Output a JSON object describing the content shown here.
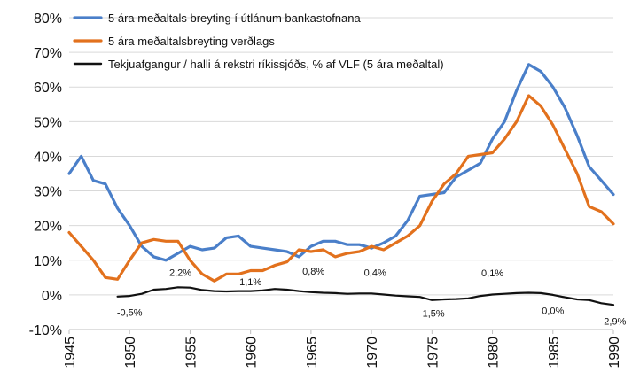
{
  "chart_data": {
    "type": "line",
    "xlim": [
      1945,
      1990
    ],
    "ylim": [
      -10,
      80
    ],
    "y_ticks": [
      "80%",
      "70%",
      "60%",
      "50%",
      "40%",
      "30%",
      "20%",
      "10%",
      "0%",
      "-10%"
    ],
    "y_tick_values": [
      80,
      70,
      60,
      50,
      40,
      30,
      20,
      10,
      0,
      -10
    ],
    "x_ticks": [
      "1945",
      "1950",
      "1955",
      "1960",
      "1965",
      "1970",
      "1975",
      "1980",
      "1985",
      "1990"
    ],
    "x_tick_values": [
      1945,
      1950,
      1955,
      1960,
      1965,
      1970,
      1975,
      1980,
      1985,
      1990
    ],
    "grid": "horizontal",
    "legend_position": "top-left",
    "series": [
      {
        "name": "5 ára meðaltals breyting í útlánum bankastofnana",
        "color": "#4a7fc9",
        "x": [
          1945,
          1946,
          1947,
          1948,
          1949,
          1950,
          1951,
          1952,
          1953,
          1954,
          1955,
          1956,
          1957,
          1958,
          1959,
          1960,
          1961,
          1962,
          1963,
          1964,
          1965,
          1966,
          1967,
          1968,
          1969,
          1970,
          1971,
          1972,
          1973,
          1974,
          1975,
          1976,
          1977,
          1978,
          1979,
          1980,
          1981,
          1982,
          1983,
          1984,
          1985,
          1986,
          1987,
          1988,
          1989,
          1990
        ],
        "y": [
          35,
          40,
          33,
          32,
          25,
          20,
          14,
          11,
          10,
          12,
          14,
          13,
          13.5,
          16.5,
          17,
          14,
          13.5,
          13,
          12.5,
          11,
          14,
          15.5,
          15.5,
          14.5,
          14.5,
          13.5,
          15,
          17,
          21.5,
          28.5,
          29,
          29.5,
          34,
          36,
          38,
          45,
          50,
          59,
          66.5,
          64.5,
          60,
          54,
          46,
          37,
          33,
          29
        ]
      },
      {
        "name": "5 ára meðaltalsbreyting verðlags",
        "color": "#e2711d",
        "x": [
          1945,
          1946,
          1947,
          1948,
          1949,
          1950,
          1951,
          1952,
          1953,
          1954,
          1955,
          1956,
          1957,
          1958,
          1959,
          1960,
          1961,
          1962,
          1963,
          1964,
          1965,
          1966,
          1967,
          1968,
          1969,
          1970,
          1971,
          1972,
          1973,
          1974,
          1975,
          1976,
          1977,
          1978,
          1979,
          1980,
          1981,
          1982,
          1983,
          1984,
          1985,
          1986,
          1987,
          1988,
          1989,
          1990
        ],
        "y": [
          18,
          14,
          10,
          5,
          4.5,
          10,
          15,
          16,
          15.5,
          15.5,
          10,
          6,
          4,
          6,
          6,
          7,
          7,
          8.5,
          9.5,
          13,
          12.5,
          13,
          11,
          12,
          12.5,
          14,
          13,
          15,
          17,
          20,
          27,
          32,
          35,
          40,
          40.5,
          41,
          45,
          50,
          57.5,
          54.5,
          49,
          42,
          35,
          25.5,
          24,
          20.5
        ]
      },
      {
        "name": "Tekjuafgangur / halli á rekstri ríkissjóðs, % af VLF (5 ára meðaltal)",
        "color": "#111111",
        "x": [
          1949,
          1950,
          1951,
          1952,
          1953,
          1954,
          1955,
          1956,
          1957,
          1958,
          1959,
          1960,
          1961,
          1962,
          1963,
          1964,
          1965,
          1966,
          1967,
          1968,
          1969,
          1970,
          1971,
          1972,
          1973,
          1974,
          1975,
          1976,
          1977,
          1978,
          1979,
          1980,
          1981,
          1982,
          1983,
          1984,
          1985,
          1986,
          1987,
          1988,
          1989,
          1990
        ],
        "y": [
          -0.5,
          -0.3,
          0.3,
          1.5,
          1.7,
          2.2,
          2.1,
          1.4,
          1.1,
          1.0,
          1.1,
          1.1,
          1.3,
          1.7,
          1.5,
          1.1,
          0.8,
          0.6,
          0.5,
          0.3,
          0.4,
          0.4,
          0.1,
          -0.2,
          -0.4,
          -0.6,
          -1.5,
          -1.3,
          -1.2,
          -1.0,
          -0.3,
          0.1,
          0.3,
          0.5,
          0.6,
          0.5,
          0.0,
          -0.7,
          -1.3,
          -1.5,
          -2.4,
          -2.9
        ]
      }
    ],
    "annotations": [
      {
        "text": "-0,5%",
        "x": 1950,
        "y": -6
      },
      {
        "text": "2,2%",
        "x": 1954.2,
        "y": 5.5
      },
      {
        "text": "1,1%",
        "x": 1960,
        "y": 2.8
      },
      {
        "text": "0,8%",
        "x": 1965.2,
        "y": 5.8
      },
      {
        "text": "0,4%",
        "x": 1970.3,
        "y": 5.5
      },
      {
        "text": "-1,5%",
        "x": 1975,
        "y": -6.3
      },
      {
        "text": "0,1%",
        "x": 1980,
        "y": 5.3
      },
      {
        "text": "0,0%",
        "x": 1985,
        "y": -5.5
      },
      {
        "text": "-2,9%",
        "x": 1990,
        "y": -8.6
      }
    ]
  }
}
